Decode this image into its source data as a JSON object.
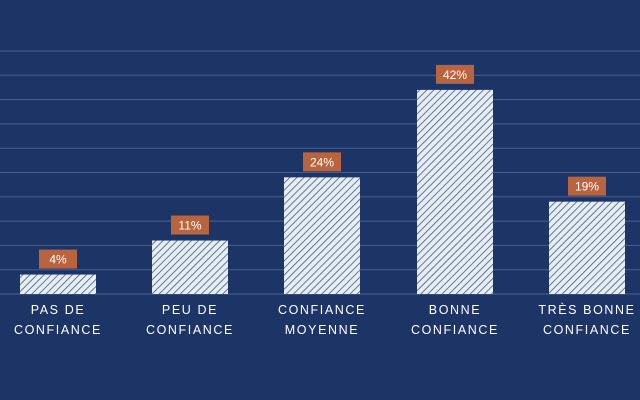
{
  "chart_data": {
    "type": "bar",
    "categories": [
      [
        "PAS DE",
        "CONFIANCE"
      ],
      [
        "PEU DE",
        "CONFIANCE"
      ],
      [
        "CONFIANCE",
        "MOYENNE"
      ],
      [
        "BONNE",
        "CONFIANCE"
      ],
      [
        "TRÈS BONNE",
        "CONFIANCE"
      ]
    ],
    "values": [
      4,
      11,
      24,
      42,
      19
    ],
    "data_labels": [
      "4%",
      "11%",
      "24%",
      "42%",
      "19%"
    ],
    "title": "",
    "xlabel": "",
    "ylabel": "",
    "ylim": [
      0,
      50
    ],
    "grid": true
  },
  "colors": {
    "background": "#1d3466",
    "gridline": "#4a6290",
    "bar_fill": "#e6eef2",
    "bar_hatch": "#3f5a86",
    "label_box": "#b8643f",
    "label_text": "#ffffff",
    "axis_text": "#ffffff"
  }
}
